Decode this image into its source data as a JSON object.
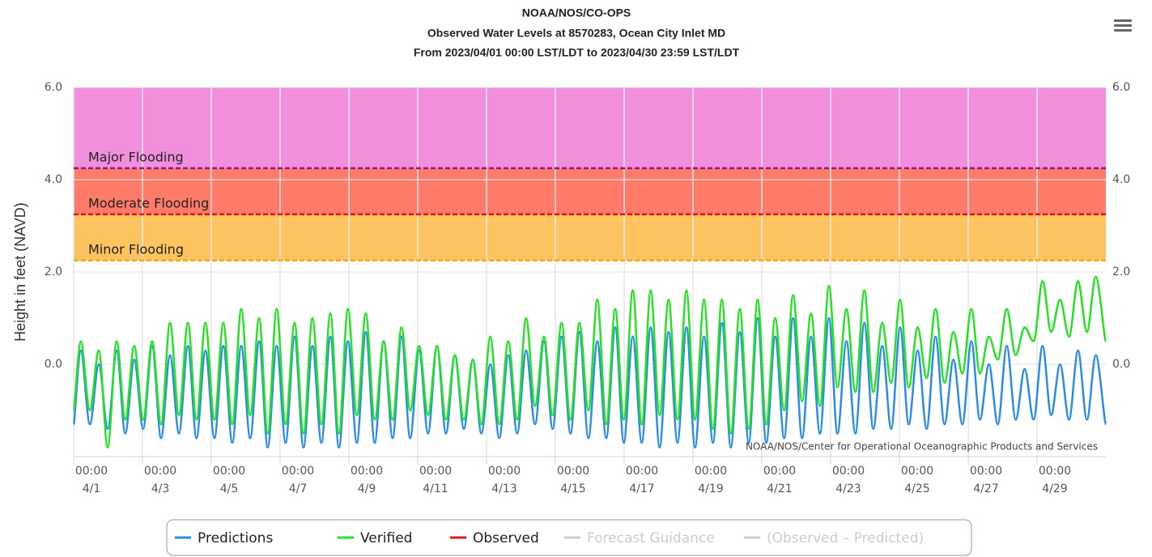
{
  "chart_data": {
    "type": "line",
    "title": "NOAA/NOS/CO-OPS",
    "subtitle": [
      "Observed Water Levels at 8570283, Ocean City Inlet MD",
      "From 2023/04/01 00:00 LST/LDT to 2023/04/30 23:59 LST/LDT"
    ],
    "y_label": "Height in feet (NAVD)",
    "credit": "NOAA/NOS/Center for Operational Oceanographic Products and Services",
    "xlim": [
      0,
      30
    ],
    "xtick_time": "00:00",
    "xticks": [
      {
        "value": 0,
        "label": "4/1"
      },
      {
        "value": 2,
        "label": "4/3"
      },
      {
        "value": 4,
        "label": "4/5"
      },
      {
        "value": 6,
        "label": "4/7"
      },
      {
        "value": 8,
        "label": "4/9"
      },
      {
        "value": 10,
        "label": "4/11"
      },
      {
        "value": 12,
        "label": "4/13"
      },
      {
        "value": 14,
        "label": "4/15"
      },
      {
        "value": 16,
        "label": "4/17"
      },
      {
        "value": 18,
        "label": "4/19"
      },
      {
        "value": 20,
        "label": "4/21"
      },
      {
        "value": 22,
        "label": "4/23"
      },
      {
        "value": 24,
        "label": "4/25"
      },
      {
        "value": 26,
        "label": "4/27"
      },
      {
        "value": 28,
        "label": "4/29"
      }
    ],
    "ylim": [
      -2,
      6
    ],
    "yticks": [
      {
        "value": 0,
        "label": "0.0"
      },
      {
        "value": 2,
        "label": "2.0"
      },
      {
        "value": 4,
        "label": "4.0"
      },
      {
        "value": 6,
        "label": "6.0"
      }
    ],
    "grid": true,
    "bands": [
      {
        "name": "Minor Flooding",
        "from": 2.25,
        "to": 3.25,
        "color": "#fdc35e",
        "line_color": "#f5a623"
      },
      {
        "name": "Moderate Flooding",
        "from": 3.25,
        "to": 4.25,
        "color": "#fe7b6a",
        "line_color": "#e8101e"
      },
      {
        "name": "Major Flooding",
        "from": 4.25,
        "to": 6,
        "color": "#f28fdc",
        "line_color": "#8e1a8e"
      }
    ],
    "x": [
      0,
      0.21,
      0.47,
      0.73,
      0.99,
      1.25,
      1.5,
      1.76,
      2.02,
      2.28,
      2.54,
      2.8,
      3.06,
      3.32,
      3.57,
      3.83,
      4.09,
      4.35,
      4.61,
      4.87,
      5.13,
      5.39,
      5.64,
      5.9,
      6.16,
      6.42,
      6.68,
      6.94,
      7.2,
      7.46,
      7.71,
      7.97,
      8.23,
      8.49,
      8.75,
      9.01,
      9.27,
      9.53,
      9.78,
      10.04,
      10.3,
      10.56,
      10.82,
      11.08,
      11.34,
      11.6,
      11.85,
      12.11,
      12.37,
      12.63,
      12.89,
      13.15,
      13.41,
      13.67,
      13.92,
      14.18,
      14.44,
      14.7,
      14.96,
      15.22,
      15.48,
      15.74,
      15.99,
      16.25,
      16.51,
      16.77,
      17.03,
      17.29,
      17.55,
      17.81,
      18.06,
      18.32,
      18.58,
      18.84,
      19.1,
      19.36,
      19.62,
      19.88,
      20.13,
      20.39,
      20.65,
      20.91,
      21.17,
      21.43,
      21.69,
      21.95,
      22.2,
      22.46,
      22.72,
      22.98,
      23.24,
      23.5,
      23.76,
      24.02,
      24.27,
      24.53,
      24.79,
      25.05,
      25.31,
      25.57,
      25.83,
      26.09,
      26.34,
      26.6,
      26.86,
      27.12,
      27.38,
      27.64,
      27.9,
      28.16,
      28.41,
      28.67,
      28.93,
      29.19,
      29.45,
      29.71,
      30.0
    ],
    "series": [
      {
        "name": "Predictions",
        "color": "#2b8ce8",
        "values": [
          -1.3,
          0.3,
          -1.3,
          0.0,
          -1.4,
          0.3,
          -1.5,
          0.1,
          -1.4,
          0.4,
          -1.6,
          0.2,
          -1.5,
          0.4,
          -1.6,
          0.3,
          -1.6,
          0.4,
          -1.7,
          0.4,
          -1.6,
          0.5,
          -1.8,
          0.4,
          -1.7,
          0.6,
          -1.8,
          0.4,
          -1.7,
          0.6,
          -1.8,
          0.5,
          -1.7,
          0.7,
          -1.7,
          0.5,
          -1.6,
          0.6,
          -1.6,
          0.3,
          -1.5,
          0.4,
          -1.5,
          0.2,
          -1.4,
          0.1,
          -1.5,
          0.0,
          -1.6,
          0.2,
          -1.5,
          0.3,
          -1.3,
          0.5,
          -1.4,
          0.6,
          -1.5,
          0.7,
          -1.6,
          0.5,
          -1.6,
          0.8,
          -1.7,
          0.6,
          -1.7,
          0.8,
          -1.8,
          0.7,
          -1.7,
          0.8,
          -1.8,
          0.6,
          -1.7,
          0.9,
          -1.8,
          0.7,
          -1.7,
          1.0,
          -1.7,
          0.6,
          -1.6,
          1.0,
          -1.6,
          0.6,
          -1.5,
          1.0,
          -1.5,
          0.5,
          -1.5,
          0.9,
          -1.4,
          0.4,
          -1.4,
          0.8,
          -1.3,
          0.3,
          -1.4,
          0.6,
          -1.3,
          0.1,
          -1.3,
          0.5,
          -1.2,
          0.0,
          -1.3,
          0.4,
          -1.2,
          -0.1,
          -1.2,
          0.4,
          -1.1,
          0.0,
          -1.2,
          0.3,
          -1.2,
          0.2,
          -1.3
        ]
      },
      {
        "name": "Verified",
        "color": "#22e222",
        "values": [
          -1.0,
          0.5,
          -1.0,
          0.3,
          -1.8,
          0.5,
          -1.2,
          0.4,
          -1.2,
          0.5,
          -1.3,
          0.9,
          -1.1,
          0.9,
          -1.2,
          0.9,
          -1.2,
          0.9,
          -1.3,
          1.2,
          -1.1,
          1.0,
          -1.5,
          1.2,
          -1.3,
          0.9,
          -1.5,
          1.0,
          -1.3,
          1.1,
          -1.5,
          1.2,
          -1.1,
          1.1,
          -1.2,
          0.5,
          -1.2,
          0.8,
          -1.0,
          0.4,
          -1.1,
          0.4,
          -1.2,
          0.2,
          -1.2,
          0.1,
          -1.3,
          0.6,
          -1.3,
          0.5,
          -1.2,
          1.0,
          -0.9,
          0.6,
          -1.1,
          0.9,
          -1.2,
          0.9,
          -1.0,
          1.4,
          -1.3,
          1.2,
          -1.2,
          1.6,
          -1.3,
          1.6,
          -1.1,
          1.4,
          -1.2,
          1.6,
          -1.2,
          1.4,
          -1.4,
          1.4,
          -1.5,
          1.2,
          -1.4,
          1.4,
          -1.3,
          1.0,
          -1.0,
          1.5,
          -0.8,
          1.1,
          -0.9,
          1.7,
          -0.5,
          1.2,
          -0.6,
          1.6,
          -0.6,
          0.9,
          -0.4,
          1.4,
          -0.5,
          0.8,
          -0.3,
          1.2,
          -0.4,
          0.7,
          -0.2,
          1.2,
          -0.2,
          0.6,
          0.1,
          1.2,
          0.2,
          0.8,
          0.5,
          1.8,
          0.7,
          1.4,
          0.6,
          1.8,
          0.7,
          1.9,
          0.5
        ]
      }
    ],
    "legend_items": [
      {
        "name": "Observed",
        "color": "#e8101e"
      },
      {
        "name": "Forecast Guidance",
        "color": "#cccccc",
        "disabled": true
      },
      {
        "name": "(Observed – Predicted)",
        "color": "#cccccc",
        "disabled": true
      }
    ]
  }
}
